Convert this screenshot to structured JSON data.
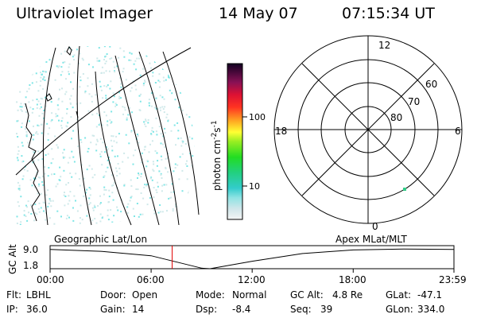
{
  "header": {
    "title": "Ultraviolet Imager",
    "date": "14 May 07",
    "time": "07:15:34 UT"
  },
  "colorbar": {
    "label": "photon cm",
    "exp1": "-2",
    "mid": "s",
    "exp2": "-1",
    "ticks": [
      "100",
      "10"
    ]
  },
  "polar": {
    "mlt_labels": [
      "12",
      "18",
      "6",
      "0"
    ],
    "lat_labels": [
      "60",
      "70",
      "80"
    ]
  },
  "altitude_panel": {
    "left_title": "Geographic Lat/Lon",
    "right_title": "Apex  MLat/MLT",
    "ylabel": "GC Alt",
    "yticks": [
      "9.0",
      "1.8"
    ],
    "xticks": [
      "00:00",
      "06:00",
      "12:00",
      "18:00",
      "23:59"
    ]
  },
  "chart_data": {
    "type": "line",
    "xlabel": "",
    "ylabel": "GC Alt",
    "xlim": [
      "00:00",
      "23:59"
    ],
    "ylim": [
      1.8,
      9.0
    ],
    "series": [
      {
        "x": [
          "00:00",
          "03:00",
          "06:00",
          "09:00",
          "09:30",
          "12:00",
          "15:00",
          "18:00",
          "21:00",
          "23:59"
        ],
        "values": [
          8.8,
          8.1,
          6.5,
          2.0,
          1.8,
          4.5,
          7.3,
          8.6,
          8.9,
          8.8
        ]
      }
    ],
    "marker_time": "07:15"
  },
  "footer": {
    "row1": [
      {
        "key": "Flt:",
        "value": "LBHL"
      },
      {
        "key": "Door:",
        "value": "Open"
      },
      {
        "key": "Mode:",
        "value": "Normal"
      },
      {
        "key": "GC Alt:",
        "value": "4.8 Re"
      },
      {
        "key": "GLat:",
        "value": "-47.1"
      }
    ],
    "row2": [
      {
        "key": "IP:",
        "value": "36.0"
      },
      {
        "key": "Gain:",
        "value": "14"
      },
      {
        "key": "Dsp:",
        "value": "-8.4"
      },
      {
        "key": "Seq:",
        "value": "39"
      },
      {
        "key": "GLon:",
        "value": "334.0"
      }
    ]
  },
  "colors": {
    "marker": "#e00000",
    "speckle": "#7de6e6",
    "speckle_pale": "#cfe9ea"
  }
}
